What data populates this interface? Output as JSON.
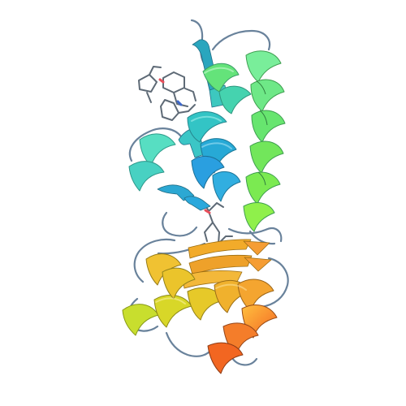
{
  "image": {
    "background": "#ffffff",
    "subject": "protein-ribbon-structure",
    "palette": {
      "n_terminus": "#2f9fd8",
      "cyan": "#36c7c0",
      "green": "#73e86f",
      "yellow_green": "#c8df2f",
      "orange": "#f29b2b",
      "c_terminus": "#f26a1d",
      "sticks": "#596775",
      "oxygen": "#e84f5b",
      "nitrogen": "#3d67c9"
    }
  }
}
